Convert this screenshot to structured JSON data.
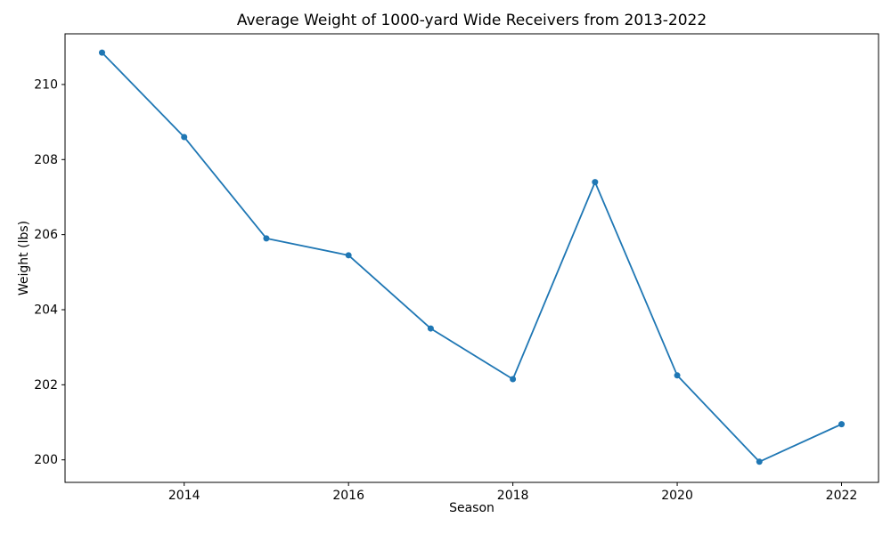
{
  "figure": {
    "background": "#ffffff"
  },
  "chart_data": {
    "type": "line",
    "title": "Average Weight of 1000-yard Wide Receivers from 2013-2022",
    "xlabel": "Season",
    "ylabel": "Weight (lbs)",
    "x": [
      2013,
      2014,
      2015,
      2016,
      2017,
      2018,
      2019,
      2020,
      2021,
      2022
    ],
    "series": [
      {
        "name": "Average Weight",
        "values": [
          210.85,
          208.6,
          205.9,
          205.45,
          203.5,
          202.15,
          207.4,
          202.25,
          199.95,
          200.95
        ]
      }
    ],
    "xlim": [
      2012.55,
      2022.45
    ],
    "ylim": [
      199.4,
      211.35
    ],
    "xticks": [
      2014,
      2016,
      2018,
      2020,
      2022
    ],
    "yticks": [
      200,
      202,
      204,
      206,
      208,
      210
    ],
    "grid": false,
    "legend": "none",
    "line_color": "#1f77b4",
    "marker": "circle",
    "spine_color": "#000000"
  }
}
